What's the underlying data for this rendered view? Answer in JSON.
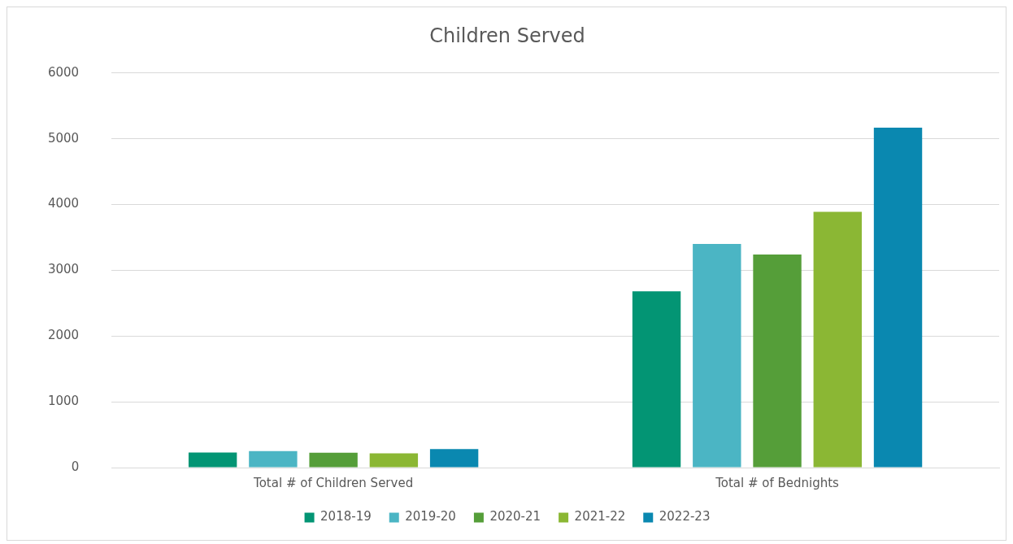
{
  "chart_data": {
    "type": "bar",
    "title": "Children Served",
    "categories": [
      "Total # of Children Served",
      "Total # of Bednights"
    ],
    "series": [
      {
        "name": "2018-19",
        "color": "#039574",
        "values": [
          230,
          2680
        ]
      },
      {
        "name": "2019-20",
        "color": "#4bb5c4",
        "values": [
          250,
          3400
        ]
      },
      {
        "name": "2020-21",
        "color": "#559e39",
        "values": [
          225,
          3240
        ]
      },
      {
        "name": "2021-22",
        "color": "#8bb734",
        "values": [
          215,
          3890
        ]
      },
      {
        "name": "2022-23",
        "color": "#0a88b0",
        "values": [
          280,
          5170
        ]
      }
    ],
    "ylim": [
      0,
      6000
    ],
    "yticks": [
      0,
      1000,
      2000,
      3000,
      4000,
      5000,
      6000
    ],
    "grid": "y",
    "legend": "bottom"
  }
}
